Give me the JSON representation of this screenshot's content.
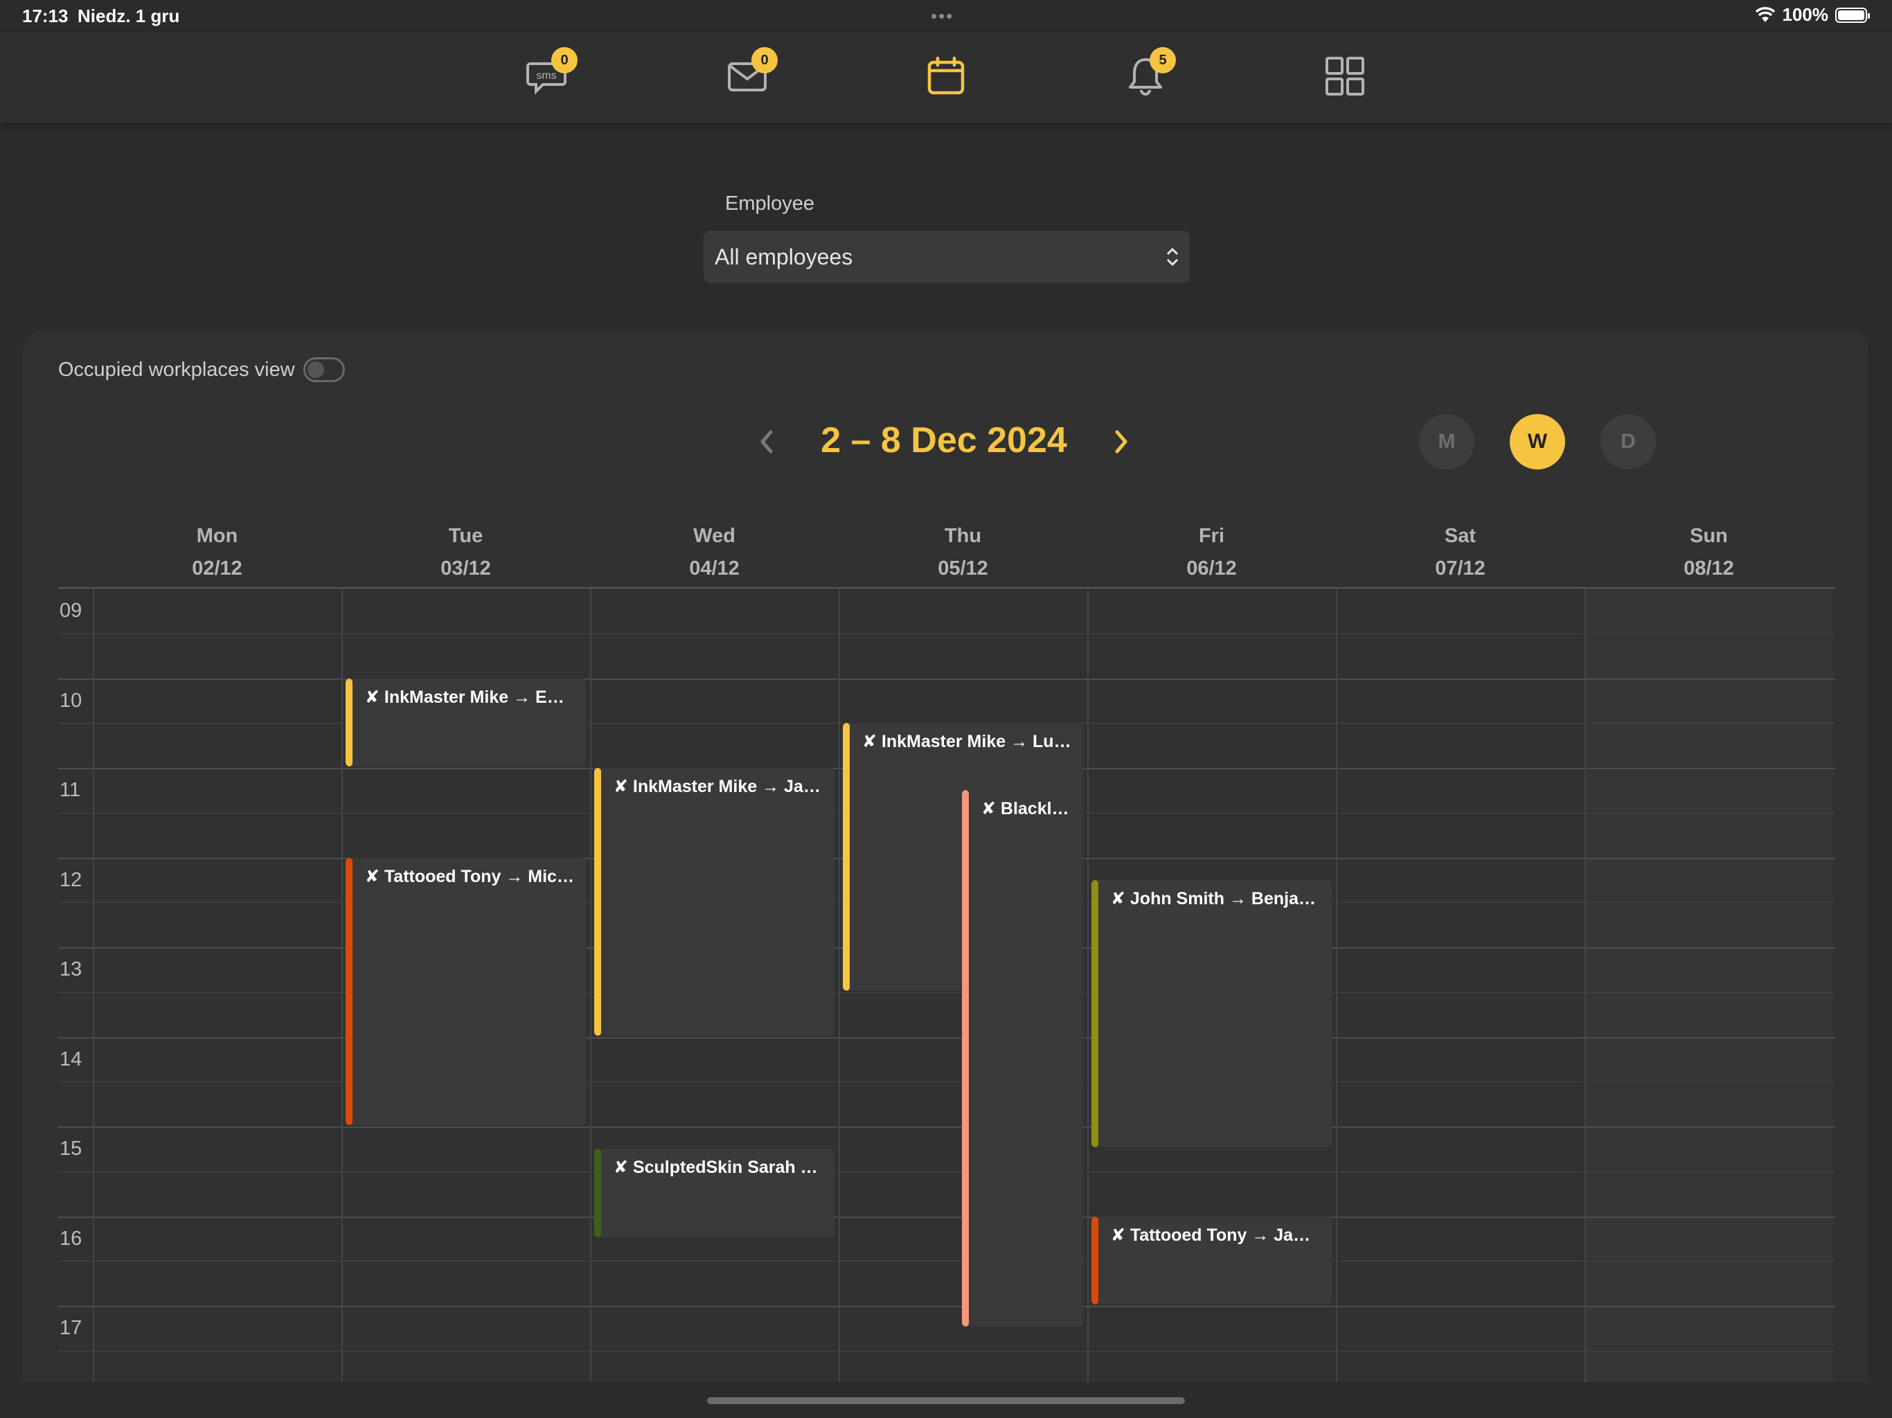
{
  "status": {
    "time": "17:13",
    "date": "Niedz. 1 gru",
    "battery": "100%"
  },
  "nav": {
    "sms_badge": "0",
    "mail_badge": "0",
    "bell_badge": "5",
    "active_color": "#f5c542",
    "icon_color": "#b3b3b3"
  },
  "filter": {
    "label": "Employee",
    "value": "All employees"
  },
  "calendar": {
    "occupied_label": "Occupied workplaces view",
    "occupied_on": false,
    "week_title": "2 – 8 Dec 2024",
    "view_modes": [
      "M",
      "W",
      "D"
    ],
    "active_view": "W",
    "days": [
      {
        "name": "Mon",
        "date": "02/12"
      },
      {
        "name": "Tue",
        "date": "03/12"
      },
      {
        "name": "Wed",
        "date": "04/12"
      },
      {
        "name": "Thu",
        "date": "05/12"
      },
      {
        "name": "Fri",
        "date": "06/12"
      },
      {
        "name": "Sat",
        "date": "07/12"
      },
      {
        "name": "Sun",
        "date": "08/12"
      }
    ],
    "hours": [
      "09",
      "10",
      "11",
      "12",
      "13",
      "14",
      "15",
      "16",
      "17"
    ],
    "events": [
      {
        "day": 1,
        "start": 10.0,
        "end": 11.0,
        "text": "✘ InkMaster Mike → Emi…",
        "color": "#f5c542"
      },
      {
        "day": 1,
        "start": 12.0,
        "end": 15.0,
        "text": "✘ Tattooed Tony → Mich…",
        "color": "#d94a0a"
      },
      {
        "day": 2,
        "start": 11.0,
        "end": 14.0,
        "text": "✘ InkMaster Mike → Jam…",
        "color": "#f5c542"
      },
      {
        "day": 2,
        "start": 15.25,
        "end": 16.25,
        "text": "✘ SculptedSkin Sarah →…",
        "color": "#3f5f1f"
      },
      {
        "day": 3,
        "start": 10.5,
        "end": 13.5,
        "text": "✘ InkMaster Mike → Luc…",
        "color": "#f5c542"
      },
      {
        "day": 3,
        "start": 11.25,
        "end": 17.25,
        "text": "✘ Blackl…",
        "color": "#f4977a",
        "sub": "right"
      },
      {
        "day": 4,
        "start": 12.25,
        "end": 15.25,
        "text": "✘ John Smith → Benjami…",
        "color": "#8f8f10"
      },
      {
        "day": 4,
        "start": 16.0,
        "end": 17.0,
        "text": "✘ Tattooed Tony → Jame…",
        "color": "#d94a0a"
      }
    ]
  }
}
